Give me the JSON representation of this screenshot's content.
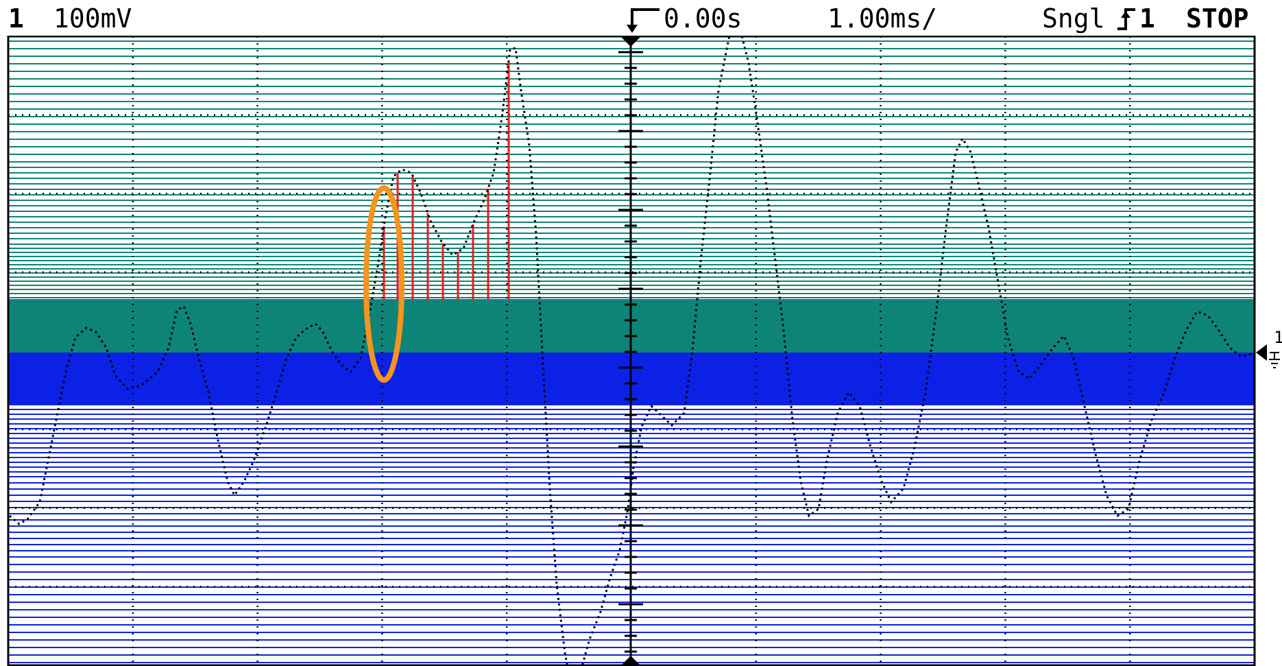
{
  "status_bar": {
    "channel": "1",
    "volts_per_div": "100mV",
    "trigger_time_icon": "trigger-delay-arrow-icon",
    "trigger_time": "0.00s",
    "time_per_div": "1.00ms/",
    "trigger_mode": "Sngl",
    "trigger_source_icon": "rising-edge-icon",
    "trigger_source": "1",
    "run_status": "STOP"
  },
  "ground_marker": {
    "label": "1",
    "icon": "ground-reference-icon"
  },
  "colors": {
    "background": "#ffffff",
    "trace": "#000000",
    "grid": "#000000",
    "positive_region": "#0e8479",
    "positive_band_light": "#1d9a8c",
    "negative_region": "#0b22e6",
    "sample_lines": "#e31e1e",
    "highlight_ellipse": "#f7941d"
  },
  "annotations": {
    "highlight_shape": "ellipse",
    "sample_marker_count": 9
  }
}
